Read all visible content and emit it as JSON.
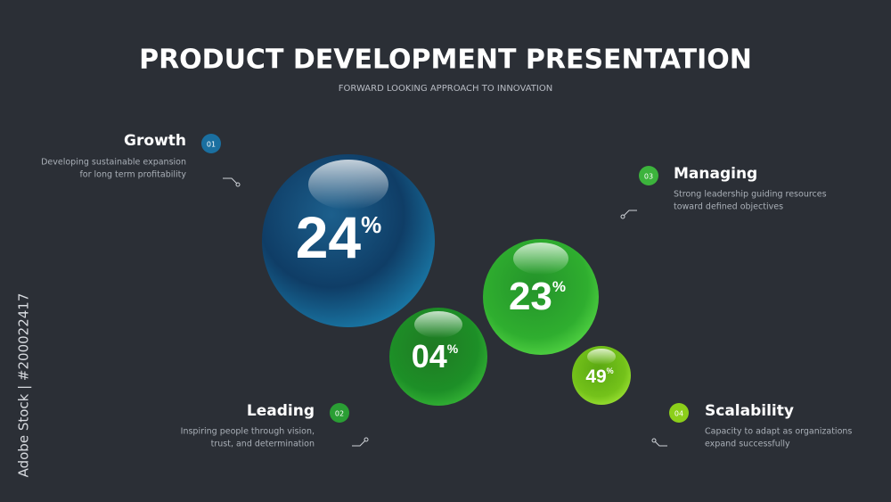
{
  "header": {
    "title": "PRODUCT DEVELOPMENT PRESENTATION",
    "subtitle": "FORWARD LOOKING APPROACH TO INNOVATION"
  },
  "items": [
    {
      "number": "01",
      "title": "Growth",
      "description": [
        "Developing sustainable expansion",
        "for long term profitability"
      ]
    },
    {
      "number": "02",
      "title": "Leading",
      "description": [
        "Inspiring people through vision,",
        "trust, and determination"
      ]
    },
    {
      "number": "03",
      "title": "Managing",
      "description": [
        "Strong leadership guiding resources",
        "toward defined objectives"
      ]
    },
    {
      "number": "04",
      "title": "Scalability",
      "description": [
        "Capacity to adapt as organizations",
        "expand successfully"
      ]
    }
  ],
  "spheres": [
    {
      "value": "24",
      "unit": "%"
    },
    {
      "value": "04",
      "unit": "%"
    },
    {
      "value": "23",
      "unit": "%"
    },
    {
      "value": "49",
      "unit": "%"
    }
  ],
  "watermark": "Adobe Stock | #200022417"
}
